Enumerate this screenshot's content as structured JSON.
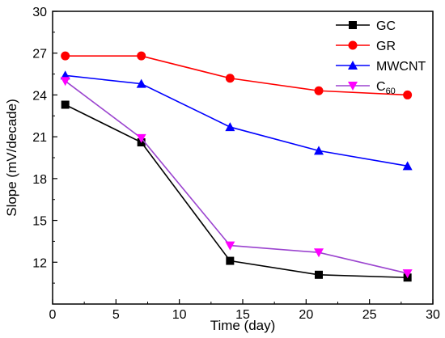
{
  "chart_data": {
    "type": "line",
    "xlabel": "Time (day)",
    "ylabel": "Slope (mV/decade)",
    "xlim": [
      0,
      30
    ],
    "ylim": [
      9,
      30
    ],
    "xticks": [
      0,
      5,
      10,
      15,
      20,
      25,
      30
    ],
    "yticks": [
      12,
      15,
      18,
      21,
      24,
      27,
      30
    ],
    "grid": false,
    "legend_position": "top-right",
    "x": [
      1,
      7,
      14,
      21,
      28
    ],
    "series": [
      {
        "name": "GC",
        "name_base": "GC",
        "name_sub": "",
        "color": "#000000",
        "marker": "square",
        "values": [
          23.3,
          20.6,
          12.1,
          11.1,
          10.9
        ]
      },
      {
        "name": "GR",
        "name_base": "GR",
        "name_sub": "",
        "color": "#ff0000",
        "marker": "circle",
        "values": [
          26.8,
          26.8,
          25.2,
          24.3,
          24.0
        ]
      },
      {
        "name": "MWCNT",
        "name_base": "MWCNT",
        "name_sub": "",
        "color": "#0000ff",
        "marker": "triangle-up",
        "values": [
          25.4,
          24.8,
          21.7,
          20.0,
          18.9
        ]
      },
      {
        "name": "C60",
        "name_base": "C",
        "name_sub": "60",
        "color": "#ff00ff",
        "line_color": "#9b44cf",
        "marker": "triangle-down",
        "values": [
          25.0,
          20.9,
          13.2,
          12.7,
          11.2
        ]
      }
    ]
  }
}
